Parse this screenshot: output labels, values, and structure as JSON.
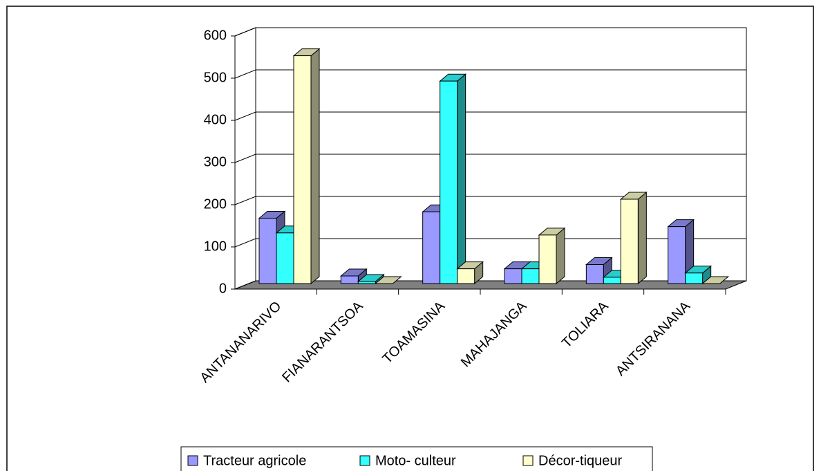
{
  "chart_data": {
    "type": "bar3d",
    "categories": [
      "ANTANANARIVO",
      "FIANARANTSOA",
      "TOAMASINA",
      "MAHAJANGA",
      "TOLIARA",
      "ANTSIRANANA"
    ],
    "series": [
      {
        "name": "Tracteur agricole",
        "color": "#9999ff",
        "values": [
          155,
          18,
          170,
          35,
          45,
          135
        ]
      },
      {
        "name": "Moto- culteur",
        "color": "#33ffff",
        "values": [
          120,
          5,
          480,
          35,
          15,
          25
        ]
      },
      {
        "name": "Décor-tiqueur",
        "color": "#ffffcc",
        "values": [
          540,
          0,
          35,
          115,
          200,
          0
        ]
      }
    ],
    "ylim": [
      0,
      600
    ],
    "yticks": [
      0,
      100,
      200,
      300,
      400,
      500,
      600
    ],
    "grid": true,
    "legend": "bottom"
  }
}
